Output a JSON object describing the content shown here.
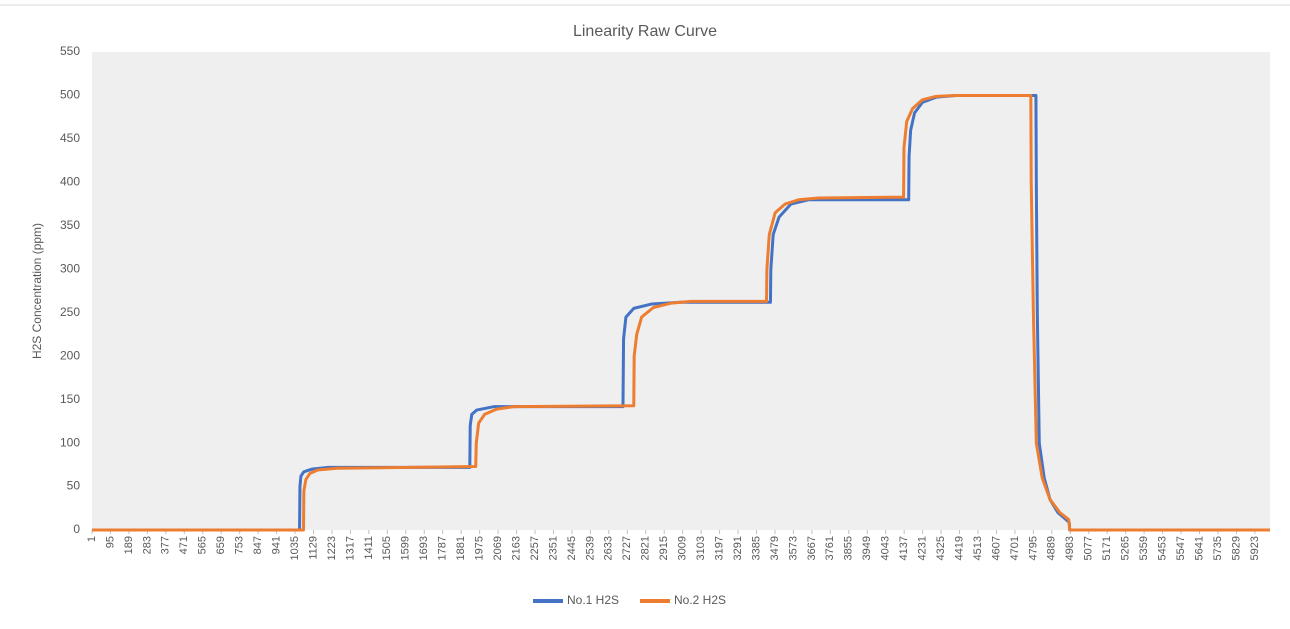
{
  "chart_data": {
    "type": "line",
    "title": "Linearity Raw Curve",
    "ylabel": "H2S Concentration (ppm)",
    "xlim": [
      1,
      6000
    ],
    "xticks": [
      1,
      95,
      189,
      283,
      377,
      471,
      565,
      659,
      753,
      847,
      941,
      1035,
      1129,
      1223,
      1317,
      1411,
      1505,
      1599,
      1693,
      1787,
      1881,
      1975,
      2069,
      2163,
      2257,
      2351,
      2445,
      2539,
      2633,
      2727,
      2821,
      2915,
      3009,
      3103,
      3197,
      3291,
      3385,
      3479,
      3573,
      3667,
      3761,
      3855,
      3949,
      4043,
      4137,
      4231,
      4325,
      4419,
      4513,
      4607,
      4701,
      4795,
      4889,
      4983,
      5077,
      5171,
      5265,
      5359,
      5453,
      5547,
      5641,
      5735,
      5829,
      5923
    ],
    "ylim": [
      0,
      550
    ],
    "yticks": [
      0,
      50,
      100,
      150,
      200,
      250,
      300,
      350,
      400,
      450,
      500,
      550
    ],
    "grid": false,
    "legend": "bottom",
    "series": [
      {
        "name": "No.1 H2S",
        "color": "#4472c4",
        "x": [
          1,
          1058,
          1060,
          1065,
          1080,
          1120,
          1200,
          1925,
          1927,
          1935,
          1960,
          2050,
          2705,
          2708,
          2720,
          2760,
          2850,
          3000,
          3456,
          3458,
          3470,
          3500,
          3560,
          3650,
          4160,
          4162,
          4170,
          4190,
          4230,
          4300,
          4400,
          4808,
          4810,
          4815,
          4825,
          4850,
          4880,
          4920,
          4972,
          4978,
          4980,
          6000
        ],
        "values": [
          0,
          0,
          50,
          62,
          67,
          70,
          72,
          72,
          120,
          133,
          138,
          142,
          142,
          220,
          245,
          255,
          260,
          262,
          262,
          300,
          340,
          360,
          375,
          380,
          380,
          430,
          460,
          480,
          492,
          498,
          500,
          500,
          400,
          250,
          100,
          60,
          35,
          20,
          10,
          8,
          0,
          0
        ]
      },
      {
        "name": "No.2 H2S",
        "color": "#ed7d31",
        "x": [
          1,
          1078,
          1080,
          1090,
          1110,
          1150,
          1250,
          1955,
          1958,
          1970,
          2000,
          2060,
          2150,
          2760,
          2762,
          2775,
          2800,
          2860,
          2950,
          3050,
          3436,
          3438,
          3450,
          3480,
          3530,
          3600,
          3700,
          4134,
          4136,
          4150,
          4180,
          4230,
          4300,
          4400,
          4782,
          4784,
          4795,
          4810,
          4840,
          4880,
          4930,
          4975,
          4980,
          6000
        ],
        "values": [
          0,
          0,
          45,
          58,
          65,
          69,
          71,
          73,
          100,
          123,
          133,
          139,
          142,
          143,
          200,
          225,
          245,
          256,
          261,
          263,
          263,
          300,
          340,
          365,
          375,
          380,
          382,
          383,
          440,
          470,
          485,
          495,
          499,
          500,
          500,
          400,
          250,
          100,
          60,
          35,
          20,
          12,
          0,
          0
        ]
      }
    ]
  }
}
